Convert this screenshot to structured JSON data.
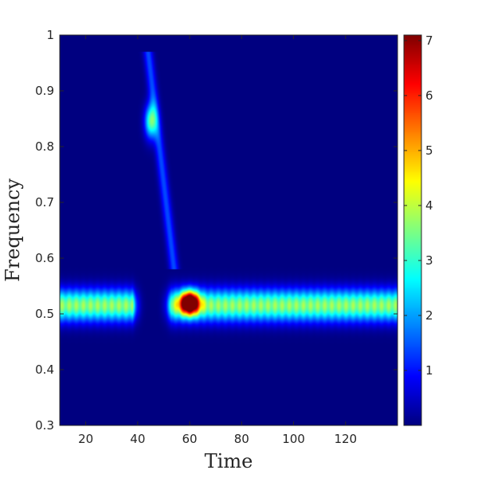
{
  "chart_data": {
    "type": "heatmap",
    "title": "",
    "xlabel": "Time",
    "ylabel": "Frequency",
    "xlim": [
      10,
      140
    ],
    "ylim": [
      0.3,
      1.0
    ],
    "xticks": [
      20,
      40,
      60,
      80,
      100,
      120
    ],
    "yticks": [
      0.3,
      0.4,
      0.5,
      0.6,
      0.7,
      0.8,
      0.9,
      1.0
    ],
    "ytick_labels": [
      "0.3",
      "0.4",
      "0.5",
      "0.6",
      "0.7",
      "0.8",
      "0.9",
      "1"
    ],
    "colormap": "jet",
    "colorbar": {
      "range": [
        0,
        7.1
      ],
      "ticks": [
        1,
        2,
        3,
        4,
        5,
        6,
        7
      ],
      "tick_labels": [
        "1",
        "2",
        "3",
        "4",
        "5",
        "6",
        "7"
      ]
    },
    "grid": false,
    "features": [
      {
        "kind": "band",
        "y_center": 0.515,
        "y_halfwidth": 0.028,
        "x_start": 10,
        "x_end": 140,
        "peak": 3.9,
        "gap_x": [
          38,
          53
        ]
      },
      {
        "kind": "blob",
        "x": 60,
        "y": 0.52,
        "x_sigma": 3.5,
        "y_sigma": 0.02,
        "peak": 7.0
      },
      {
        "kind": "blob",
        "x": 45,
        "y": 0.845,
        "x_sigma": 2.3,
        "y_sigma": 0.03,
        "peak": 3.2
      },
      {
        "kind": "ridge",
        "x_from": 44,
        "y_from": 0.97,
        "x_to": 54,
        "y_to": 0.58,
        "peak": 1.4
      }
    ]
  }
}
